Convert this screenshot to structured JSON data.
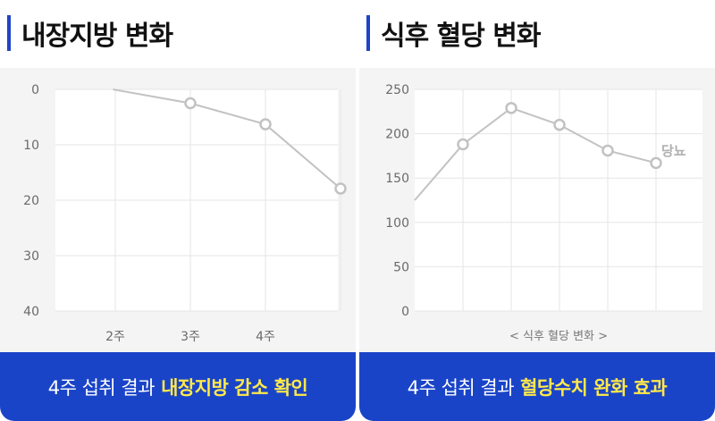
{
  "left": {
    "heading": "내장지방 변화",
    "footer_main": "4주 섭취 결과",
    "footer_highlight": "내장지방 감소 확인"
  },
  "right": {
    "heading": "식후 혈당 변화",
    "footer_main": "4주 섭취 결과",
    "footer_highlight": "혈당수치 완화 효과"
  },
  "colors": {
    "accent": "#1a44c8",
    "highlight": "#ffe94a",
    "line": "#c2c2c2",
    "panel_bg": "#f4f4f4"
  },
  "chart_data": [
    {
      "type": "line",
      "title": "내장지방 변화",
      "categories": [
        "",
        "2주",
        "3주",
        "4주",
        ""
      ],
      "x": [
        0.97,
        2,
        3,
        4
      ],
      "series": [
        {
          "values": [
            0,
            2.5,
            6.3,
            17.9
          ],
          "markers": [
            false,
            true,
            true,
            true
          ]
        }
      ],
      "y_ticks": [
        "0",
        "10",
        "20",
        "30",
        "40"
      ],
      "ylim": [
        0,
        40
      ],
      "y_inverted": true,
      "grid": true
    },
    {
      "type": "line",
      "title": "식후 혈당 변화",
      "xlabel": "< 식후 혈당 변화 >",
      "x": [
        0,
        1,
        2,
        3,
        4,
        5
      ],
      "series": [
        {
          "values": [
            125,
            188,
            229,
            210,
            181,
            167
          ],
          "markers": [
            false,
            true,
            true,
            true,
            true,
            true
          ]
        }
      ],
      "y_ticks": [
        "0",
        "50",
        "100",
        "150",
        "200",
        "250"
      ],
      "ylim": [
        0,
        250
      ],
      "grid": true,
      "annotation": "당뇨"
    }
  ]
}
